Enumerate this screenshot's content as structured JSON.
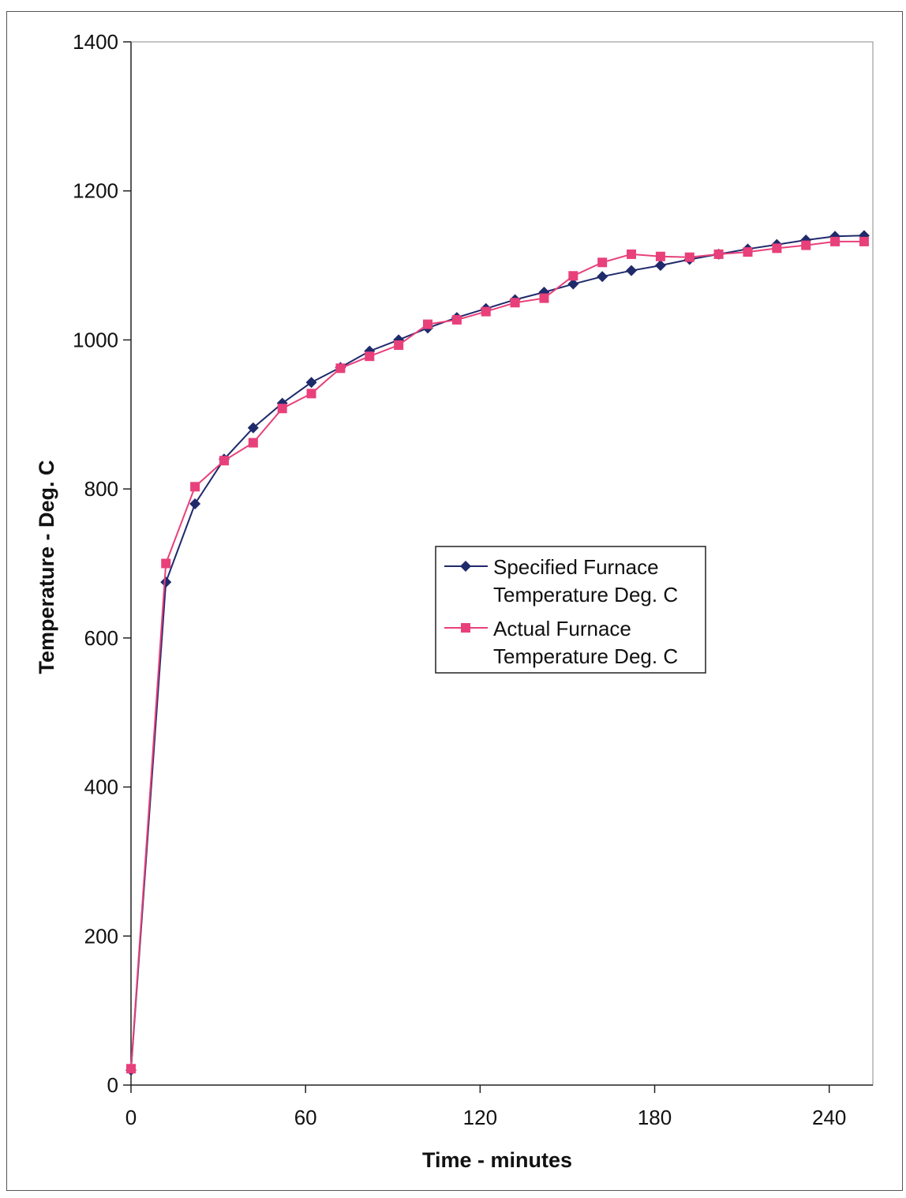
{
  "chart_data": {
    "type": "line",
    "title": "",
    "xlabel": "Time - minutes",
    "ylabel": "Temperature - Deg. C",
    "xlim": [
      0,
      255
    ],
    "ylim": [
      0,
      1400
    ],
    "x_ticks": [
      0,
      60,
      120,
      180,
      240
    ],
    "y_ticks": [
      0,
      200,
      400,
      600,
      800,
      1000,
      1200,
      1400
    ],
    "grid": false,
    "legend_position": "center-right",
    "series": [
      {
        "name": "Specified Furnace Temperature Deg. C",
        "color": "#1f2a6b",
        "marker": "diamond",
        "x": [
          0,
          12,
          22,
          32,
          42,
          52,
          62,
          72,
          82,
          92,
          102,
          112,
          122,
          132,
          142,
          152,
          162,
          172,
          182,
          192,
          202,
          212,
          222,
          232,
          242,
          252
        ],
        "y": [
          20,
          675,
          780,
          840,
          882,
          915,
          943,
          963,
          985,
          1000,
          1016,
          1030,
          1042,
          1054,
          1064,
          1075,
          1085,
          1093,
          1100,
          1108,
          1115,
          1122,
          1128,
          1134,
          1139,
          1140
        ]
      },
      {
        "name": "Actual Furnace Temperature Deg. C",
        "color": "#e8407a",
        "marker": "square",
        "x": [
          0,
          12,
          22,
          32,
          42,
          52,
          62,
          72,
          82,
          92,
          102,
          112,
          122,
          132,
          142,
          152,
          162,
          172,
          182,
          192,
          202,
          212,
          222,
          232,
          242,
          252
        ],
        "y": [
          22,
          700,
          803,
          838,
          862,
          908,
          928,
          962,
          978,
          993,
          1021,
          1027,
          1038,
          1050,
          1056,
          1086,
          1104,
          1115,
          1112,
          1111,
          1115,
          1118,
          1123,
          1127,
          1132,
          1132
        ]
      }
    ],
    "legend_entries": [
      {
        "line1": "Specified Furnace",
        "line2": "Temperature Deg. C"
      },
      {
        "line1": "Actual Furnace",
        "line2": "Temperature Deg. C"
      }
    ]
  }
}
